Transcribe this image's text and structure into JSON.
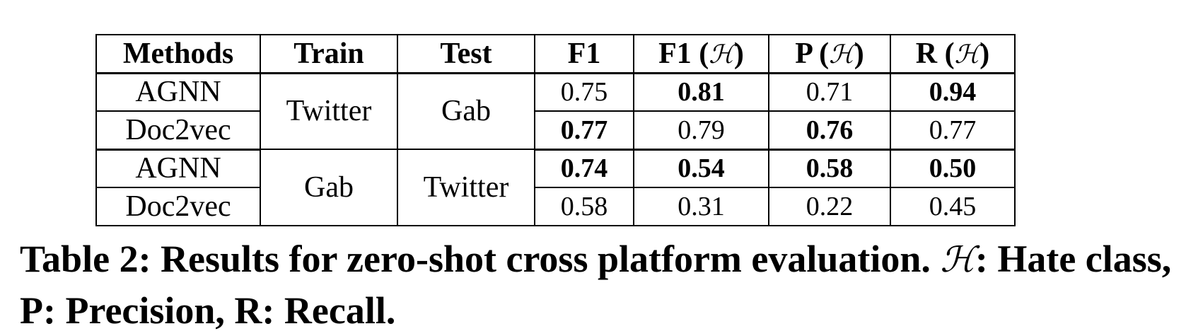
{
  "table": {
    "headers": [
      "Methods",
      "Train",
      "Test",
      "F1",
      "F1 (",
      "P (",
      "R ("
    ],
    "header_symbol": "ℋ",
    "groups": [
      {
        "train": "Twitter",
        "test": "Gab",
        "rows": [
          {
            "method": "AGNN",
            "f1": "0.75",
            "f1_h": "0.81",
            "p_h": "0.71",
            "r_h": "0.94"
          },
          {
            "method": "Doc2vec",
            "f1": "0.77",
            "f1_h": "0.79",
            "p_h": "0.76",
            "r_h": "0.77"
          }
        ]
      },
      {
        "train": "Gab",
        "test": "Twitter",
        "rows": [
          {
            "method": "AGNN",
            "f1": "0.74",
            "f1_h": "0.54",
            "p_h": "0.58",
            "r_h": "0.50"
          },
          {
            "method": "Doc2vec",
            "f1": "0.58",
            "f1_h": "0.31",
            "p_h": "0.22",
            "r_h": "0.45"
          }
        ]
      }
    ]
  },
  "caption": {
    "part1": "Table 2: Results for zero-shot cross platform evaluation. ",
    "symbol": "ℋ",
    "part2": ": Hate class, P: Precision, R: Recall."
  }
}
